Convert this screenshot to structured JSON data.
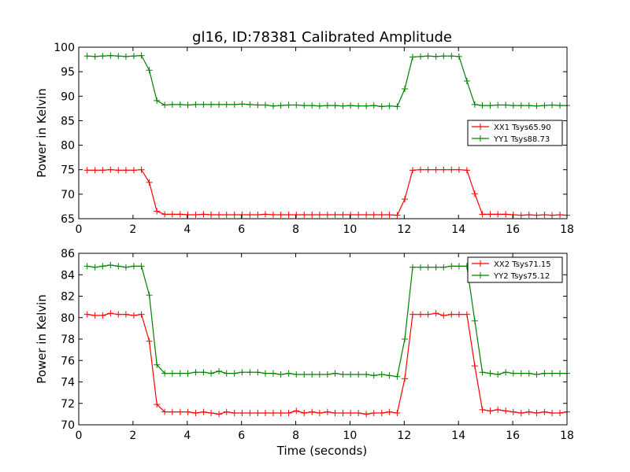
{
  "chart_data": {
    "type": "line",
    "title": "gl16, ID:78381 Calibrated Amplitude",
    "xlabel": "Time (seconds)",
    "subplots": [
      {
        "ylabel": "Power in Kelvin",
        "xlim": [
          0,
          18
        ],
        "ylim": [
          65,
          100
        ],
        "xticks": [
          "0",
          "2",
          "4",
          "6",
          "8",
          "10",
          "12",
          "14",
          "16",
          "18"
        ],
        "yticks": [
          "65",
          "70",
          "75",
          "80",
          "85",
          "90",
          "95",
          "100"
        ],
        "xtick_values": [
          0,
          2,
          4,
          6,
          8,
          10,
          12,
          14,
          16,
          18
        ],
        "ytick_values": [
          65,
          70,
          75,
          80,
          85,
          90,
          95,
          100
        ],
        "legend": "right",
        "series": [
          {
            "name": "XX1 Tsys65.90",
            "color": "#ff0000",
            "x": [
              0.31,
              0.6,
              0.88,
              1.17,
              1.46,
              1.74,
              2.03,
              2.31,
              2.6,
              2.88,
              3.17,
              3.45,
              3.74,
              4.02,
              4.31,
              4.6,
              4.88,
              5.17,
              5.45,
              5.74,
              6.02,
              6.31,
              6.6,
              6.88,
              7.17,
              7.45,
              7.74,
              8.02,
              8.31,
              8.6,
              8.88,
              9.17,
              9.45,
              9.74,
              10.02,
              10.31,
              10.6,
              10.88,
              11.17,
              11.45,
              11.74,
              12.02,
              12.31,
              12.6,
              12.88,
              13.17,
              13.45,
              13.74,
              14.02,
              14.31,
              14.6,
              14.88,
              15.17,
              15.45,
              15.74,
              16.02,
              16.31,
              16.6,
              16.88,
              17.17,
              17.45,
              17.74,
              18.0
            ],
            "y": [
              74.9,
              74.9,
              74.9,
              75.0,
              74.9,
              74.9,
              74.9,
              75.0,
              72.4,
              66.5,
              65.9,
              65.9,
              65.9,
              65.8,
              65.8,
              65.9,
              65.8,
              65.8,
              65.8,
              65.8,
              65.8,
              65.8,
              65.8,
              65.9,
              65.8,
              65.8,
              65.8,
              65.8,
              65.8,
              65.8,
              65.8,
              65.8,
              65.8,
              65.8,
              65.8,
              65.8,
              65.8,
              65.8,
              65.8,
              65.8,
              65.7,
              69.0,
              74.9,
              75.0,
              75.0,
              75.0,
              75.0,
              75.0,
              75.0,
              74.9,
              70.1,
              65.9,
              65.9,
              65.9,
              65.9,
              65.8,
              65.7,
              65.8,
              65.7,
              65.8,
              65.7,
              65.8,
              65.7
            ]
          },
          {
            "name": "YY1 Tsys88.73",
            "color": "#008000",
            "x": [
              0.31,
              0.6,
              0.88,
              1.17,
              1.46,
              1.74,
              2.03,
              2.31,
              2.6,
              2.88,
              3.17,
              3.45,
              3.74,
              4.02,
              4.31,
              4.6,
              4.88,
              5.17,
              5.45,
              5.74,
              6.02,
              6.31,
              6.6,
              6.88,
              7.17,
              7.45,
              7.74,
              8.02,
              8.31,
              8.6,
              8.88,
              9.17,
              9.45,
              9.74,
              10.02,
              10.31,
              10.6,
              10.88,
              11.17,
              11.45,
              11.74,
              12.02,
              12.31,
              12.6,
              12.88,
              13.17,
              13.45,
              13.74,
              14.02,
              14.31,
              14.6,
              14.88,
              15.17,
              15.45,
              15.74,
              16.02,
              16.31,
              16.6,
              16.88,
              17.17,
              17.45,
              17.74,
              18.0
            ],
            "y": [
              98.2,
              98.1,
              98.2,
              98.3,
              98.2,
              98.1,
              98.2,
              98.3,
              95.3,
              89.1,
              88.2,
              88.3,
              88.3,
              88.2,
              88.3,
              88.3,
              88.3,
              88.3,
              88.3,
              88.3,
              88.4,
              88.3,
              88.2,
              88.2,
              88.0,
              88.1,
              88.2,
              88.2,
              88.1,
              88.1,
              88.0,
              88.1,
              88.1,
              88.0,
              88.1,
              88.0,
              88.0,
              88.1,
              87.9,
              88.0,
              87.9,
              91.5,
              98.0,
              98.1,
              98.2,
              98.1,
              98.2,
              98.2,
              98.1,
              93.1,
              88.3,
              88.1,
              88.1,
              88.2,
              88.2,
              88.1,
              88.1,
              88.1,
              88.0,
              88.1,
              88.2,
              88.1,
              88.1
            ]
          }
        ]
      },
      {
        "ylabel": "Power in Kelvin",
        "xlim": [
          0,
          18
        ],
        "ylim": [
          70,
          86
        ],
        "xticks": [
          "0",
          "2",
          "4",
          "6",
          "8",
          "10",
          "12",
          "14",
          "16",
          "18"
        ],
        "yticks": [
          "70",
          "72",
          "74",
          "76",
          "78",
          "80",
          "82",
          "84",
          "86"
        ],
        "xtick_values": [
          0,
          2,
          4,
          6,
          8,
          10,
          12,
          14,
          16,
          18
        ],
        "ytick_values": [
          70,
          72,
          74,
          76,
          78,
          80,
          82,
          84,
          86
        ],
        "legend": "top-right",
        "series": [
          {
            "name": "XX2 Tsys71.15",
            "color": "#ff0000",
            "x": [
              0.31,
              0.6,
              0.88,
              1.17,
              1.46,
              1.74,
              2.03,
              2.31,
              2.6,
              2.88,
              3.17,
              3.45,
              3.74,
              4.02,
              4.31,
              4.6,
              4.88,
              5.17,
              5.45,
              5.74,
              6.02,
              6.31,
              6.6,
              6.88,
              7.17,
              7.45,
              7.74,
              8.02,
              8.31,
              8.6,
              8.88,
              9.17,
              9.45,
              9.74,
              10.02,
              10.31,
              10.6,
              10.88,
              11.17,
              11.45,
              11.74,
              12.02,
              12.31,
              12.6,
              12.88,
              13.17,
              13.45,
              13.74,
              14.02,
              14.31,
              14.6,
              14.88,
              15.17,
              15.45,
              15.74,
              16.02,
              16.31,
              16.6,
              16.88,
              17.17,
              17.45,
              17.74,
              18.0
            ],
            "y": [
              80.3,
              80.2,
              80.2,
              80.4,
              80.3,
              80.3,
              80.2,
              80.3,
              77.8,
              71.9,
              71.2,
              71.2,
              71.2,
              71.2,
              71.1,
              71.2,
              71.1,
              71.0,
              71.2,
              71.1,
              71.1,
              71.1,
              71.1,
              71.1,
              71.1,
              71.1,
              71.1,
              71.3,
              71.1,
              71.2,
              71.1,
              71.2,
              71.1,
              71.1,
              71.1,
              71.1,
              71.0,
              71.1,
              71.1,
              71.2,
              71.1,
              74.3,
              80.3,
              80.3,
              80.3,
              80.4,
              80.2,
              80.3,
              80.3,
              80.3,
              75.5,
              71.4,
              71.3,
              71.4,
              71.3,
              71.2,
              71.1,
              71.2,
              71.1,
              71.2,
              71.1,
              71.1,
              71.2
            ]
          },
          {
            "name": "YY2 Tsys75.12",
            "color": "#008000",
            "x": [
              0.31,
              0.6,
              0.88,
              1.17,
              1.46,
              1.74,
              2.03,
              2.31,
              2.6,
              2.88,
              3.17,
              3.45,
              3.74,
              4.02,
              4.31,
              4.6,
              4.88,
              5.17,
              5.45,
              5.74,
              6.02,
              6.31,
              6.6,
              6.88,
              7.17,
              7.45,
              7.74,
              8.02,
              8.31,
              8.6,
              8.88,
              9.17,
              9.45,
              9.74,
              10.02,
              10.31,
              10.6,
              10.88,
              11.17,
              11.45,
              11.74,
              12.02,
              12.31,
              12.6,
              12.88,
              13.17,
              13.45,
              13.74,
              14.02,
              14.31,
              14.6,
              14.88,
              15.17,
              15.45,
              15.74,
              16.02,
              16.31,
              16.6,
              16.88,
              17.17,
              17.45,
              17.74,
              18.0
            ],
            "y": [
              84.8,
              84.7,
              84.8,
              84.9,
              84.8,
              84.7,
              84.8,
              84.8,
              82.1,
              75.6,
              74.8,
              74.8,
              74.8,
              74.8,
              74.9,
              74.9,
              74.8,
              75.0,
              74.8,
              74.8,
              74.9,
              74.9,
              74.9,
              74.8,
              74.8,
              74.7,
              74.8,
              74.7,
              74.7,
              74.7,
              74.7,
              74.7,
              74.8,
              74.7,
              74.7,
              74.7,
              74.7,
              74.6,
              74.7,
              74.6,
              74.5,
              78.0,
              84.7,
              84.7,
              84.7,
              84.7,
              84.7,
              84.8,
              84.8,
              84.8,
              79.7,
              74.9,
              74.8,
              74.7,
              74.9,
              74.8,
              74.8,
              74.8,
              74.7,
              74.8,
              74.8,
              74.8,
              74.8
            ]
          }
        ]
      }
    ]
  }
}
